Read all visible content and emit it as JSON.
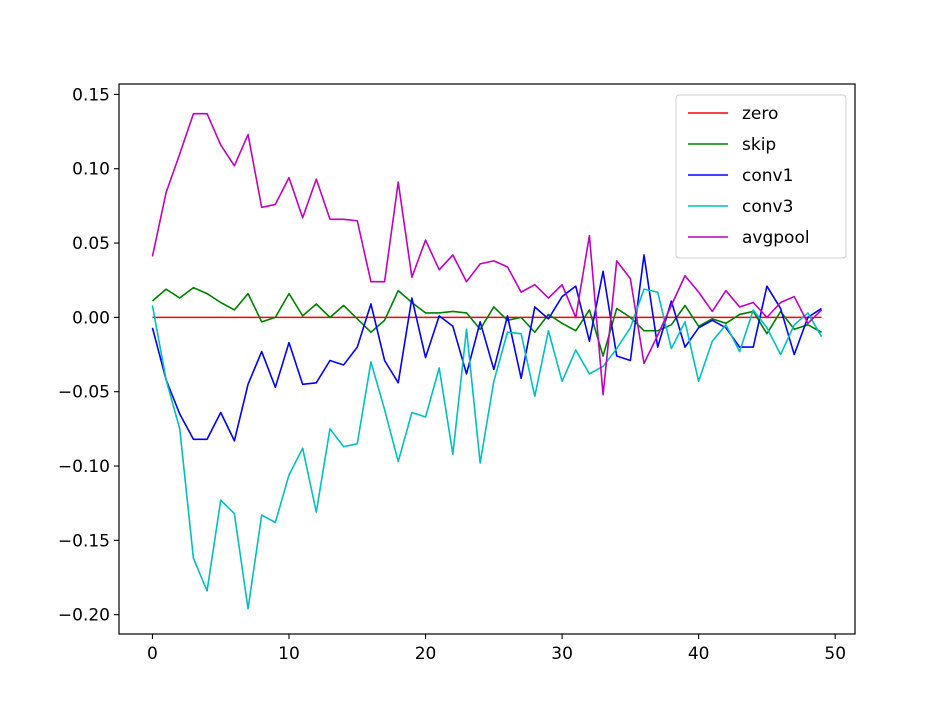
{
  "chart_data": {
    "type": "line",
    "title": "",
    "xlabel": "",
    "ylabel": "",
    "xlim": [
      -2.45,
      51.45
    ],
    "ylim": [
      -0.213,
      0.157
    ],
    "xticks": [
      0,
      10,
      20,
      30,
      40,
      50
    ],
    "xtick_labels": [
      "0",
      "10",
      "20",
      "30",
      "40",
      "50"
    ],
    "yticks": [
      -0.2,
      -0.15,
      -0.1,
      -0.05,
      0.0,
      0.05,
      0.1,
      0.15
    ],
    "ytick_labels": [
      "−0.20",
      "−0.15",
      "−0.10",
      "−0.05",
      "0.00",
      "0.05",
      "0.10",
      "0.15"
    ],
    "grid": false,
    "legend_position": "top-right",
    "x": [
      0,
      1,
      2,
      3,
      4,
      5,
      6,
      7,
      8,
      9,
      10,
      11,
      12,
      13,
      14,
      15,
      16,
      17,
      18,
      19,
      20,
      21,
      22,
      23,
      24,
      25,
      26,
      27,
      28,
      29,
      30,
      31,
      32,
      33,
      34,
      35,
      36,
      37,
      38,
      39,
      40,
      41,
      42,
      43,
      44,
      45,
      46,
      47,
      48,
      49
    ],
    "series": [
      {
        "name": "zero",
        "color": "#ff0000",
        "values": [
          0,
          0,
          0,
          0,
          0,
          0,
          0,
          0,
          0,
          0,
          0,
          0,
          0,
          0,
          0,
          0,
          0,
          0,
          0,
          0,
          0,
          0,
          0,
          0,
          0,
          0,
          0,
          0,
          0,
          0,
          0,
          0,
          0,
          0,
          0,
          0,
          0,
          0,
          0,
          0,
          0,
          0,
          0,
          0,
          0,
          0,
          0,
          0,
          0,
          0
        ]
      },
      {
        "name": "skip",
        "color": "#008000",
        "values": [
          0.011,
          0.019,
          0.013,
          0.02,
          0.016,
          0.01,
          0.005,
          0.016,
          -0.003,
          0.0,
          0.016,
          0.001,
          0.009,
          0.0,
          0.008,
          -0.001,
          -0.01,
          -0.002,
          0.018,
          0.01,
          0.003,
          0.003,
          0.004,
          0.003,
          -0.008,
          0.007,
          -0.002,
          0.0,
          -0.01,
          0.002,
          -0.004,
          -0.009,
          0.005,
          -0.026,
          0.006,
          0.0,
          -0.009,
          -0.009,
          -0.005,
          0.008,
          -0.006,
          -0.001,
          -0.004,
          0.002,
          0.004,
          -0.011,
          0.004,
          -0.008,
          -0.005,
          -0.01
        ]
      },
      {
        "name": "conv1",
        "color": "#0000ff",
        "values": [
          -0.007,
          -0.042,
          -0.065,
          -0.082,
          -0.082,
          -0.064,
          -0.083,
          -0.045,
          -0.023,
          -0.047,
          -0.017,
          -0.045,
          -0.044,
          -0.029,
          -0.032,
          -0.02,
          0.009,
          -0.029,
          -0.044,
          0.013,
          -0.027,
          0.001,
          -0.006,
          -0.038,
          -0.003,
          -0.035,
          0.001,
          -0.041,
          0.007,
          -0.001,
          0.014,
          0.021,
          -0.016,
          0.031,
          -0.026,
          -0.029,
          0.042,
          -0.02,
          0.011,
          -0.02,
          -0.007,
          -0.002,
          -0.007,
          -0.02,
          -0.02,
          0.021,
          0.006,
          -0.025,
          0.0,
          0.006
        ]
      },
      {
        "name": "conv3",
        "color": "#00bfbf",
        "values": [
          0.008,
          -0.042,
          -0.075,
          -0.162,
          -0.184,
          -0.123,
          -0.132,
          -0.196,
          -0.133,
          -0.138,
          -0.106,
          -0.088,
          -0.131,
          -0.075,
          -0.087,
          -0.085,
          -0.03,
          -0.062,
          -0.097,
          -0.064,
          -0.067,
          -0.034,
          -0.092,
          -0.008,
          -0.098,
          -0.043,
          -0.01,
          -0.011,
          -0.053,
          -0.009,
          -0.043,
          -0.022,
          -0.038,
          -0.033,
          -0.021,
          -0.007,
          0.019,
          0.017,
          -0.021,
          -0.003,
          -0.043,
          -0.016,
          -0.005,
          -0.023,
          0.005,
          -0.007,
          -0.025,
          -0.005,
          0.003,
          -0.013
        ]
      },
      {
        "name": "avgpool",
        "color": "#bf00bf",
        "values": [
          0.041,
          0.084,
          0.11,
          0.137,
          0.137,
          0.116,
          0.102,
          0.123,
          0.074,
          0.076,
          0.094,
          0.067,
          0.093,
          0.066,
          0.066,
          0.065,
          0.024,
          0.024,
          0.091,
          0.027,
          0.052,
          0.032,
          0.042,
          0.024,
          0.036,
          0.038,
          0.034,
          0.017,
          0.022,
          0.013,
          0.022,
          0.0,
          0.055,
          -0.052,
          0.038,
          0.026,
          -0.031,
          -0.012,
          0.008,
          0.028,
          0.017,
          0.004,
          0.018,
          0.007,
          0.01,
          0.0,
          0.01,
          0.014,
          -0.004,
          0.005
        ]
      }
    ]
  }
}
